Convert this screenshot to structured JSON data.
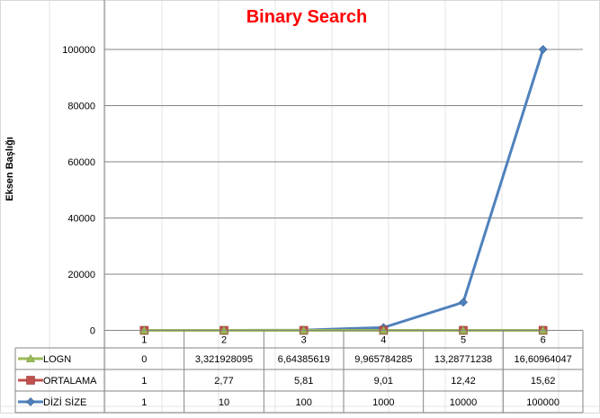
{
  "chart_data": {
    "type": "line",
    "title": "Binary Search",
    "ylabel": "Eksen Başlığı",
    "xlabel": "",
    "categories": [
      "1",
      "2",
      "3",
      "4",
      "5",
      "6"
    ],
    "ylim": [
      0,
      110000
    ],
    "yticks": [
      0,
      20000,
      40000,
      60000,
      80000,
      100000
    ],
    "grid": true,
    "legend": "data-table-left",
    "series": [
      {
        "name": "LOGN",
        "color": "#9BBB59",
        "marker": "triangle",
        "values": [
          0,
          3.321928095,
          6.64385619,
          9.965784285,
          13.28771238,
          16.60964047
        ],
        "labels": [
          "0",
          "3,321928095",
          "6,64385619",
          "9,965784285",
          "13,28771238",
          "16,60964047"
        ]
      },
      {
        "name": "ORTALAMA",
        "color": "#C0504D",
        "marker": "square",
        "values": [
          1,
          2.77,
          5.81,
          9.01,
          12.42,
          15.62
        ],
        "labels": [
          "1",
          "2,77",
          "5,81",
          "9,01",
          "12,42",
          "15,62"
        ]
      },
      {
        "name": "DİZİ SİZE",
        "color": "#4F81BD",
        "marker": "diamond",
        "values": [
          1,
          10,
          100,
          1000,
          10000,
          100000
        ],
        "labels": [
          "1",
          "10",
          "100",
          "1000",
          "10000",
          "100000"
        ]
      }
    ]
  }
}
